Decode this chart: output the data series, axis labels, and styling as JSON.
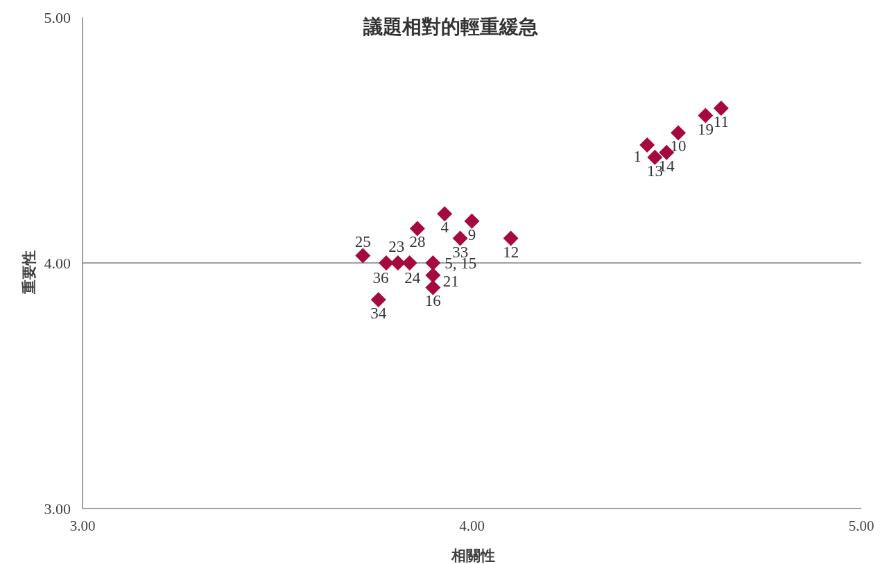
{
  "chart_data": {
    "type": "scatter",
    "title": "議題相對的輕重緩急",
    "xlabel": "相關性",
    "ylabel": "重要性",
    "xlim": [
      3,
      5
    ],
    "ylim": [
      3,
      5
    ],
    "xticks": [
      {
        "value": 3,
        "label": "3.00"
      },
      {
        "value": 4,
        "label": "4.00"
      },
      {
        "value": 5,
        "label": "5.00"
      }
    ],
    "yticks": [
      {
        "value": 3,
        "label": "3.00"
      },
      {
        "value": 4,
        "label": "4.00"
      },
      {
        "value": 5,
        "label": "5.00"
      }
    ],
    "marker": "diamond",
    "grid": false,
    "ref_lines": [
      {
        "axis": "y",
        "value": 4,
        "color": "#404040"
      }
    ],
    "series": [
      {
        "color": "#a6093d",
        "x": [
          4.45,
          4.47,
          4.5,
          4.53,
          4.6,
          4.64,
          3.93,
          4.0,
          3.86,
          3.97,
          4.1,
          3.72,
          3.78,
          3.81,
          3.84,
          3.9,
          3.9,
          3.9,
          3.76
        ],
        "values": [
          4.48,
          4.43,
          4.45,
          4.53,
          4.6,
          4.63,
          4.2,
          4.17,
          4.14,
          4.1,
          4.1,
          4.03,
          4.0,
          4.0,
          4.0,
          4.0,
          3.95,
          3.9,
          3.85
        ]
      }
    ],
    "annotations": [
      {
        "text": "1",
        "x": 4.45,
        "y": 4.48
      },
      {
        "text": "13",
        "x": 4.47,
        "y": 4.43
      },
      {
        "text": "14",
        "x": 4.5,
        "y": 4.45
      },
      {
        "text": "10",
        "x": 4.53,
        "y": 4.53
      },
      {
        "text": "19",
        "x": 4.6,
        "y": 4.6
      },
      {
        "text": "11",
        "x": 4.64,
        "y": 4.63
      },
      {
        "text": "4",
        "x": 3.93,
        "y": 4.2
      },
      {
        "text": "9",
        "x": 4.0,
        "y": 4.17
      },
      {
        "text": "28",
        "x": 3.86,
        "y": 4.14
      },
      {
        "text": "33",
        "x": 3.97,
        "y": 4.1
      },
      {
        "text": "12",
        "x": 4.1,
        "y": 4.1
      },
      {
        "text": "25",
        "x": 3.72,
        "y": 4.03
      },
      {
        "text": "36",
        "x": 3.78,
        "y": 4.0
      },
      {
        "text": "23",
        "x": 3.81,
        "y": 4.0
      },
      {
        "text": "24",
        "x": 3.84,
        "y": 4.0
      },
      {
        "text": "5, 15",
        "x": 3.9,
        "y": 4.0
      },
      {
        "text": "21",
        "x": 3.9,
        "y": 3.95
      },
      {
        "text": "16",
        "x": 3.9,
        "y": 3.9
      },
      {
        "text": "34",
        "x": 3.76,
        "y": 3.85
      }
    ]
  }
}
